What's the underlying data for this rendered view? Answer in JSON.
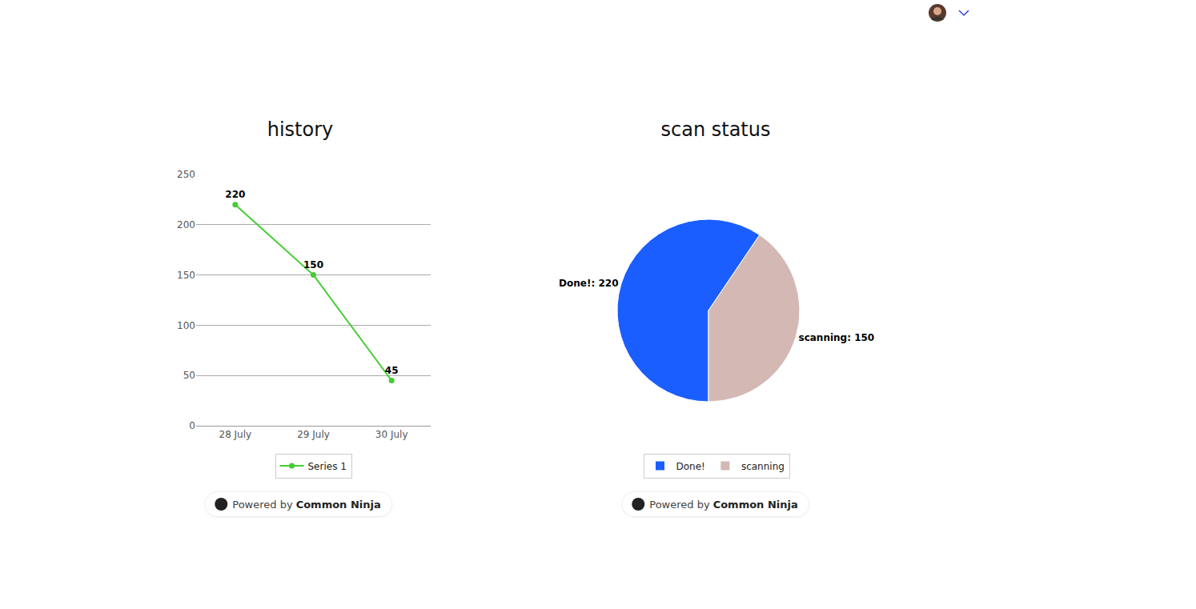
{
  "chart_data": [
    {
      "type": "line",
      "title": "history",
      "categories": [
        "28 July",
        "29 July",
        "30 July"
      ],
      "series": [
        {
          "name": "Series 1",
          "color": "#44cc33",
          "values": [
            220,
            150,
            45
          ]
        }
      ],
      "ylim": [
        0,
        250
      ],
      "yticks": [
        0,
        50,
        100,
        150,
        200,
        250
      ],
      "grid": true,
      "data_labels": true,
      "legend": "bottom",
      "marker": "circle"
    },
    {
      "type": "pie",
      "title": "scan status",
      "categories": [
        "Done!",
        "scanning"
      ],
      "values": [
        220,
        150
      ],
      "value_labels": [
        "Done!: 220",
        "scanning: 150"
      ],
      "colors": [
        "#1a5eff",
        "#d4b8b4"
      ],
      "data_labels": true,
      "legend": "bottom"
    }
  ],
  "footer": {
    "badges": [
      {
        "prefix": "Powered by",
        "brand": "Common Ninja"
      },
      {
        "prefix": "Powered by",
        "brand": "Common Ninja"
      }
    ]
  }
}
